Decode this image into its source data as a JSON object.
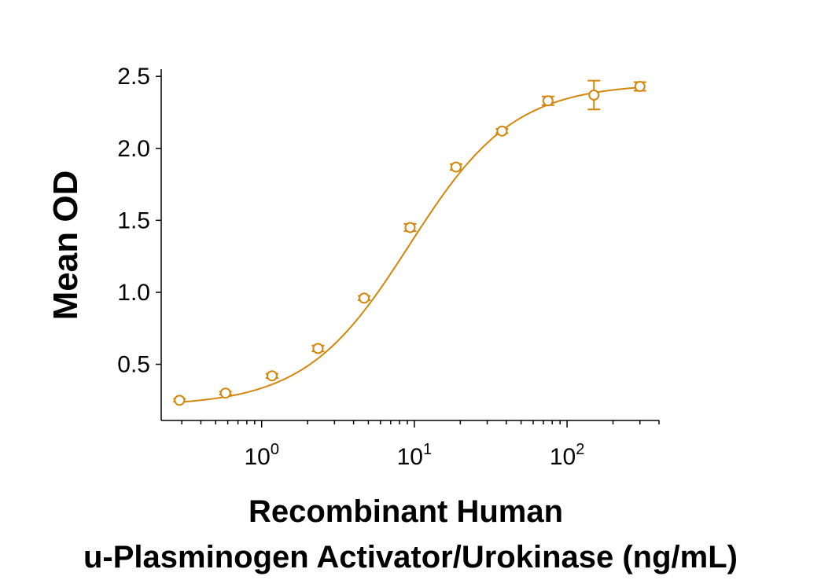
{
  "chart_data": {
    "type": "scatter",
    "x_scale": "log",
    "xlim": [
      0.22,
      400
    ],
    "ylim": [
      0.11,
      2.55
    ],
    "grid": false,
    "color": "#D4860B",
    "y_ticks": [
      0.5,
      1.0,
      1.5,
      2.0,
      2.5
    ],
    "y_tick_labels": [
      "0.5",
      "1.0",
      "1.5",
      "2.0",
      "2.5"
    ],
    "x_ticks": [
      {
        "value": 1,
        "base": "10",
        "exp": "0"
      },
      {
        "value": 10,
        "base": "10",
        "exp": "1"
      },
      {
        "value": 100,
        "base": "10",
        "exp": "2"
      }
    ],
    "ylabel": "Mean OD",
    "xlabel_line1": "Recombinant Human",
    "xlabel_line2": "u-Plasminogen Activator/Urokinase (ng/mL)",
    "points": [
      {
        "x": 0.29,
        "y": 0.25,
        "err": 0.01
      },
      {
        "x": 0.58,
        "y": 0.3,
        "err": 0.01
      },
      {
        "x": 1.17,
        "y": 0.42,
        "err": 0.015
      },
      {
        "x": 2.34,
        "y": 0.61,
        "err": 0.02
      },
      {
        "x": 4.69,
        "y": 0.96,
        "err": 0.015
      },
      {
        "x": 9.38,
        "y": 1.45,
        "err": 0.025
      },
      {
        "x": 18.75,
        "y": 1.87,
        "err": 0.02
      },
      {
        "x": 37.5,
        "y": 2.12,
        "err": 0.015
      },
      {
        "x": 75,
        "y": 2.33,
        "err": 0.03
      },
      {
        "x": 150,
        "y": 2.37,
        "err": 0.1
      },
      {
        "x": 300,
        "y": 2.43,
        "err": 0.03
      }
    ],
    "fit": {
      "model": "4PL",
      "bottom": 0.21,
      "top": 2.45,
      "ec50": 9.3,
      "hill": 1.27
    }
  }
}
